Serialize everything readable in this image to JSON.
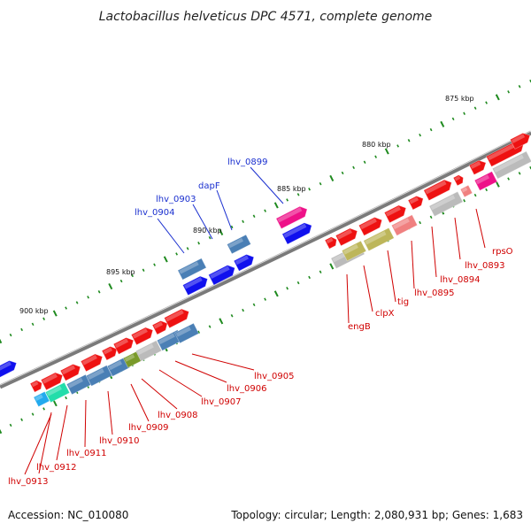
{
  "title": "Lactobacillus helveticus DPC 4571, complete genome",
  "accession": "Accession: NC_010080",
  "summary": "Topology: circular; Length: 2,080,931 bp; Genes: 1,683",
  "scale_labels": [
    "875 kbp",
    "880 kbp",
    "885 kbp",
    "890 kbp",
    "895 kbp",
    "900 kbp"
  ],
  "top_strand_genes": [
    "lhv_0899",
    "dapF",
    "lhv_0903",
    "lhv_0904"
  ],
  "bottom_strand_genes": [
    "rpsO",
    "lhv_0893",
    "lhv_0894",
    "lhv_0895",
    "tig",
    "clpX",
    "engB",
    "lhv_0905",
    "lhv_0906",
    "lhv_0907",
    "lhv_0908",
    "lhv_0909",
    "lhv_0910",
    "lhv_0911",
    "lhv_0912",
    "lhv_0913"
  ],
  "colors": {
    "backbone": "#7a7a7a",
    "scale_ticks": "#1f8a1f",
    "top_label": "#1a2fcf",
    "bottom_label": "#d00000",
    "gene_red": "#ee1111",
    "gene_blue": "#1010ee",
    "gene_steel": "#4a7fb5",
    "gene_magenta": "#ee1188",
    "gene_grey": "#bbbbbb",
    "gene_olive": "#bdb65a",
    "gene_pink": "#f08080",
    "gene_teal": "#22ddaa",
    "gene_cyan": "#22aaee",
    "gene_green": "#7a9a2a"
  }
}
